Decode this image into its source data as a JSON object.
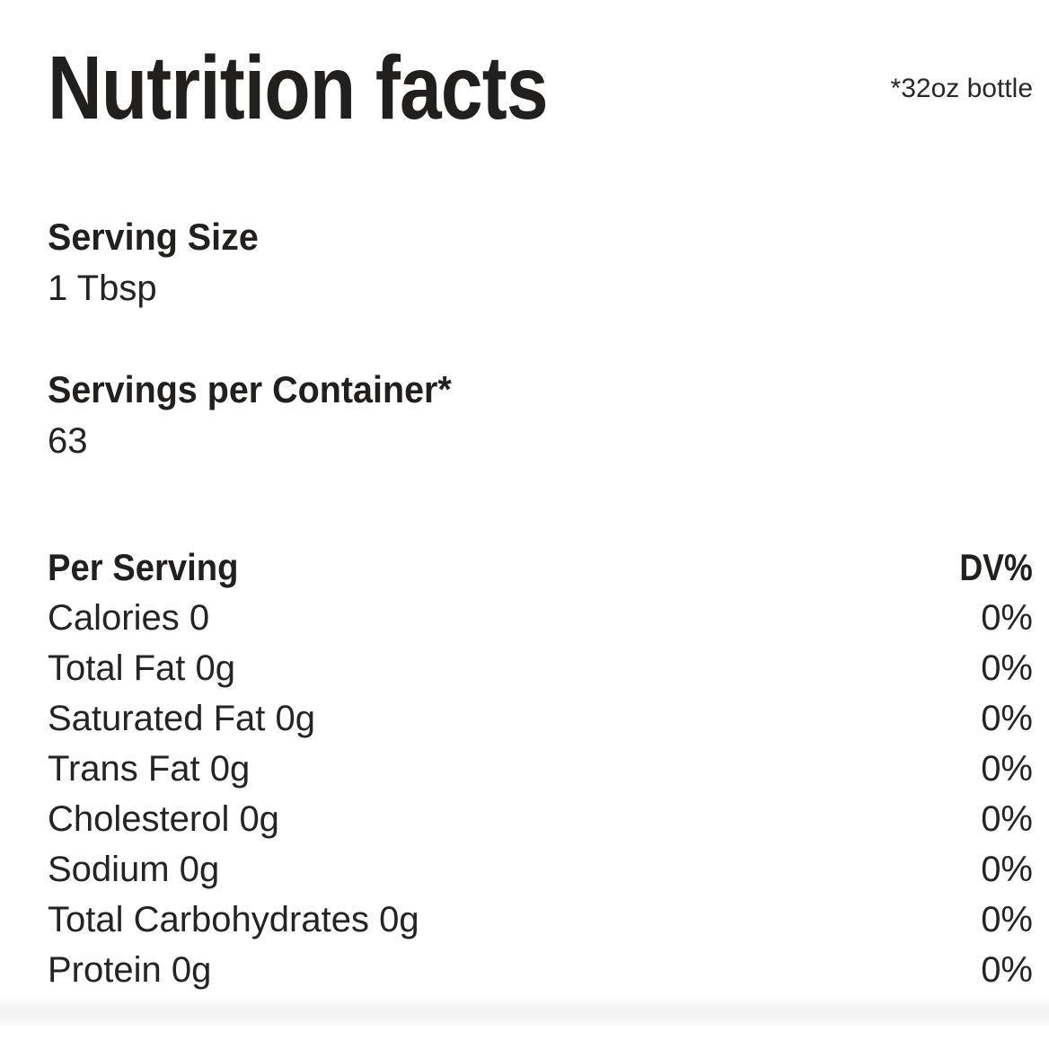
{
  "label": {
    "title": "Nutrition facts",
    "bottle_note": "*32oz bottle",
    "serving_size": {
      "label": "Serving Size",
      "value": "1 Tbsp"
    },
    "servings_per_container": {
      "label": "Servings per Container*",
      "value": "63"
    },
    "table": {
      "column_left": "Per Serving",
      "column_right": "DV%",
      "rows": [
        {
          "label": "Calories 0",
          "dv": "0%"
        },
        {
          "label": "Total Fat 0g",
          "dv": "0%"
        },
        {
          "label": "Saturated Fat 0g",
          "dv": "0%"
        },
        {
          "label": "Trans Fat 0g",
          "dv": "0%"
        },
        {
          "label": "Cholesterol 0g",
          "dv": "0%"
        },
        {
          "label": "Sodium 0g",
          "dv": "0%"
        },
        {
          "label": "Total Carbohydrates 0g",
          "dv": "0%"
        },
        {
          "label": "Protein 0g",
          "dv": "0%"
        }
      ]
    },
    "colors": {
      "text": "#221f1f",
      "background": "#ffffff",
      "bottom_band": "#f1f1f2"
    }
  }
}
